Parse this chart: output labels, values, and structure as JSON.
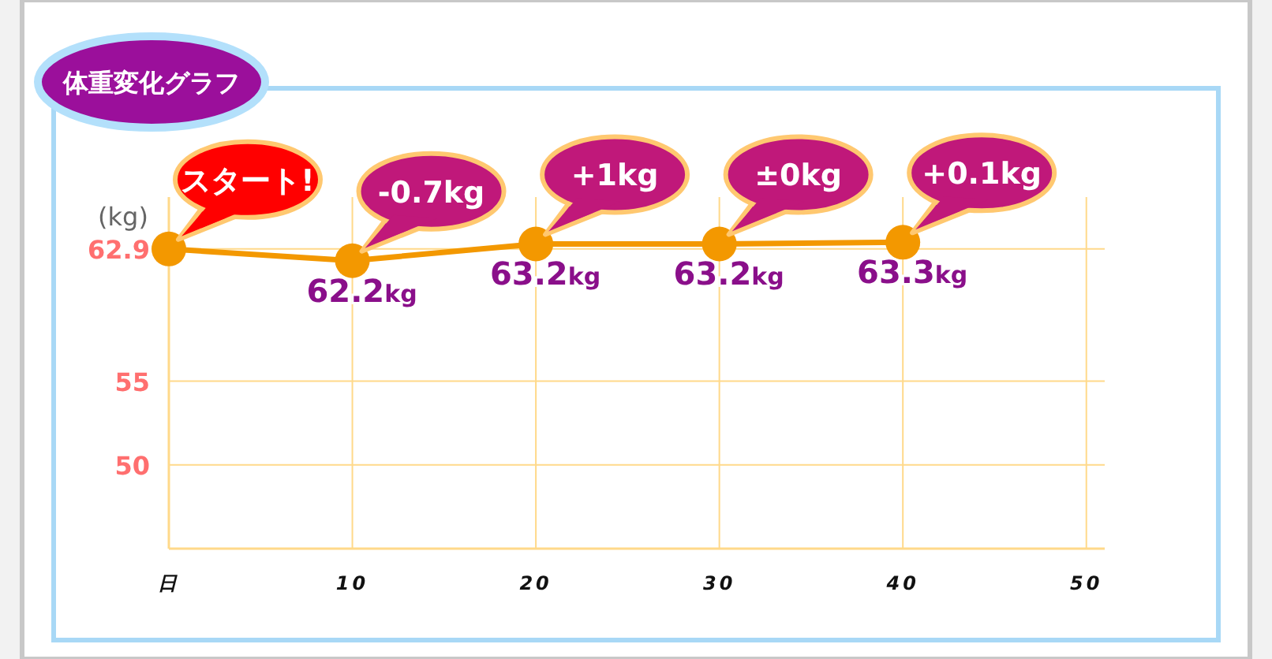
{
  "chart_data": {
    "type": "line",
    "title": "体重変化グラフ",
    "ylabel": "(kg)",
    "x": [
      0,
      10,
      20,
      30,
      40
    ],
    "series": [
      {
        "color": "#f39800",
        "values": [
          62.9,
          62.2,
          63.2,
          63.2,
          63.3
        ]
      }
    ],
    "value_labels": [
      null,
      "62.2kg",
      "63.2kg",
      "63.2kg",
      "63.3kg"
    ],
    "annotations": [
      {
        "text": "スタート!",
        "x": 0,
        "y": 62.9
      },
      {
        "text": "-0.7kg",
        "x": 10,
        "y": 62.2
      },
      {
        "text": "+1kg",
        "x": 20,
        "y": 63.2
      },
      {
        "text": "±0kg",
        "x": 30,
        "y": 63.2
      },
      {
        "text": "+0.1kg",
        "x": 40,
        "y": 63.3
      }
    ],
    "xlim": [
      0,
      51
    ],
    "ylim": [
      45,
      66
    ],
    "xticks": [
      {
        "value": 0,
        "label": "日"
      },
      10,
      20,
      30,
      40,
      50
    ],
    "yticks": [
      62.9,
      55,
      50
    ],
    "grid": true,
    "marker": "circle",
    "line_style": "solid"
  }
}
